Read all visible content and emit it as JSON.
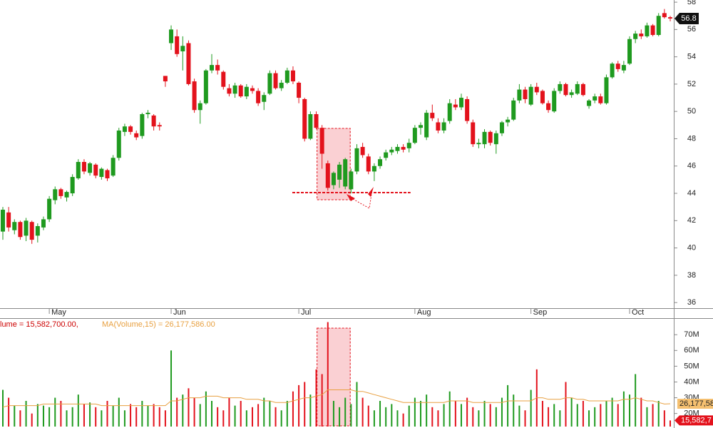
{
  "chart_data": [
    {
      "type": "candlestick",
      "categories": [
        null,
        null,
        null,
        null,
        null,
        null,
        null,
        null,
        "May",
        null,
        null,
        null,
        null,
        null,
        null,
        null,
        null,
        null,
        null,
        null,
        null,
        null,
        null,
        null,
        null,
        null,
        null,
        null,
        null,
        "Jun",
        null,
        null,
        null,
        null,
        null,
        null,
        null,
        null,
        null,
        null,
        null,
        null,
        null,
        null,
        null,
        null,
        null,
        null,
        null,
        null,
        null,
        "Jul",
        null,
        null,
        null,
        null,
        null,
        null,
        null,
        null,
        null,
        null,
        null,
        null,
        null,
        null,
        null,
        null,
        null,
        null,
        null,
        "Aug",
        null,
        null,
        null,
        null,
        null,
        null,
        null,
        null,
        null,
        null,
        null,
        null,
        null,
        null,
        null,
        null,
        null,
        null,
        null,
        "Sep",
        null,
        null,
        null,
        null,
        null,
        null,
        null,
        null,
        null,
        null,
        null,
        null,
        null,
        null,
        null,
        null,
        "Oct",
        null,
        null,
        null,
        null,
        null,
        null,
        null
      ],
      "open": [
        41.2,
        42.6,
        41.3,
        41.9,
        40.9,
        41.9,
        40.9,
        41.5,
        42.1,
        43.5,
        44.3,
        43.7,
        44.0,
        45.1,
        46.3,
        45.5,
        46.1,
        45.2,
        45.7,
        45.3,
        46.6,
        48.5,
        48.9,
        48.4,
        48.2,
        49.8,
        49.7,
        49.0,
        52.6,
        55.0,
        55.5,
        54.4,
        55.0,
        52.2,
        50.1,
        50.6,
        53.0,
        53.4,
        52.9,
        51.7,
        51.3,
        51.9,
        51.1,
        51.7,
        51.5,
        50.7,
        51.3,
        52.8,
        51.7,
        52.1,
        53.0,
        52.1,
        50.9,
        48.0,
        49.8,
        48.8,
        46.2,
        44.6,
        45.0,
        44.5,
        44.3,
        45.6,
        47.4,
        46.7,
        45.6,
        46.0,
        46.6,
        47.0,
        47.1,
        47.4,
        47.3,
        47.7,
        48.8,
        48.1,
        49.9,
        49.2,
        48.6,
        49.3,
        50.5,
        50.3,
        50.9,
        49.2,
        47.6,
        47.6,
        48.5,
        47.6,
        48.4,
        49.2,
        49.4,
        50.8,
        51.6,
        50.5,
        51.8,
        51.5,
        50.6,
        50.0,
        51.5,
        52.0,
        51.2,
        51.3,
        52.0,
        50.4,
        50.8,
        51.1,
        50.6,
        52.5,
        53.5,
        53.0,
        53.5,
        55.3,
        55.7,
        55.5,
        56.3,
        55.6,
        57.2,
        56.9
      ],
      "high": [
        43.0,
        43.0,
        42.1,
        42.0,
        42.2,
        42.0,
        41.8,
        42.3,
        43.8,
        44.5,
        44.4,
        44.2,
        45.4,
        46.5,
        46.5,
        46.3,
        46.2,
        45.9,
        45.8,
        46.8,
        48.8,
        49.1,
        49.0,
        48.6,
        49.9,
        50.1,
        49.8,
        49.2,
        52.6,
        56.3,
        56.0,
        55.5,
        55.2,
        52.4,
        50.8,
        53.1,
        54.2,
        53.8,
        53.0,
        52.0,
        52.1,
        52.0,
        52.0,
        51.9,
        51.7,
        51.4,
        53.0,
        53.0,
        52.3,
        53.2,
        53.3,
        52.2,
        51.0,
        50.0,
        50.0,
        49.0,
        46.4,
        45.6,
        46.3,
        46.6,
        45.8,
        47.6,
        47.7,
        46.9,
        46.2,
        46.7,
        47.2,
        47.4,
        47.6,
        47.6,
        48.0,
        49.0,
        49.2,
        50.1,
        50.5,
        49.5,
        49.5,
        50.9,
        50.9,
        51.3,
        51.1,
        49.4,
        48.0,
        48.7,
        48.6,
        48.6,
        49.3,
        49.6,
        51.0,
        52.0,
        51.8,
        52.0,
        52.1,
        51.6,
        50.8,
        51.7,
        52.2,
        52.1,
        51.6,
        52.2,
        52.1,
        50.9,
        51.3,
        51.3,
        52.7,
        53.6,
        53.7,
        53.7,
        55.5,
        55.9,
        56.0,
        56.5,
        56.4,
        57.2,
        57.5,
        57.0
      ],
      "low": [
        40.6,
        41.2,
        41.0,
        40.6,
        40.5,
        40.3,
        40.4,
        41.3,
        41.9,
        43.2,
        43.6,
        43.4,
        43.8,
        45.0,
        45.4,
        45.3,
        45.1,
        45.0,
        44.9,
        45.2,
        46.4,
        48.2,
        48.3,
        47.9,
        48.0,
        49.5,
        48.6,
        48.6,
        51.8,
        54.5,
        54.0,
        53.0,
        51.9,
        49.9,
        49.1,
        50.5,
        52.8,
        52.7,
        51.6,
        51.1,
        51.0,
        51.0,
        50.9,
        51.3,
        50.4,
        50.1,
        51.2,
        51.6,
        51.5,
        52.0,
        52.0,
        50.6,
        47.8,
        47.9,
        48.7,
        45.8,
        44.2,
        44.3,
        44.4,
        44.3,
        44.0,
        45.4,
        46.6,
        45.4,
        44.9,
        45.8,
        46.4,
        46.8,
        46.9,
        47.0,
        47.0,
        47.6,
        48.3,
        47.9,
        49.3,
        48.4,
        48.4,
        49.1,
        50.1,
        50.1,
        49.1,
        47.4,
        47.3,
        47.3,
        47.5,
        46.9,
        48.2,
        48.9,
        49.3,
        50.6,
        50.6,
        50.4,
        51.2,
        50.5,
        49.9,
        49.9,
        51.3,
        51.1,
        51.0,
        51.2,
        51.1,
        50.2,
        50.6,
        50.5,
        50.5,
        52.4,
        52.9,
        52.8,
        53.4,
        55.0,
        55.3,
        55.4,
        55.5,
        55.5,
        56.8,
        56.6
      ],
      "close": [
        42.8,
        41.5,
        41.9,
        40.8,
        42.0,
        40.6,
        41.6,
        42.1,
        43.6,
        44.3,
        43.8,
        44.1,
        45.2,
        46.3,
        45.6,
        46.2,
        45.3,
        45.8,
        45.1,
        46.6,
        48.6,
        48.9,
        48.5,
        48.1,
        49.8,
        49.9,
        48.9,
        48.9,
        52.2,
        56.0,
        54.2,
        54.8,
        52.0,
        50.1,
        50.6,
        53.0,
        53.4,
        53.0,
        51.8,
        51.3,
        51.9,
        51.1,
        51.8,
        51.5,
        50.6,
        51.2,
        52.8,
        51.7,
        52.1,
        53.0,
        52.2,
        51.0,
        48.0,
        49.8,
        48.8,
        46.9,
        44.4,
        45.5,
        46.1,
        46.5,
        45.6,
        47.3,
        46.8,
        45.6,
        46.0,
        46.5,
        47.0,
        47.2,
        47.4,
        47.2,
        47.7,
        48.8,
        49.0,
        49.9,
        49.5,
        48.6,
        49.2,
        50.6,
        50.3,
        51.0,
        49.3,
        47.6,
        47.7,
        48.5,
        47.7,
        48.4,
        49.2,
        49.4,
        50.8,
        51.6,
        50.9,
        51.8,
        51.4,
        50.6,
        50.1,
        51.5,
        52.0,
        51.2,
        51.4,
        52.0,
        51.2,
        50.8,
        51.1,
        50.6,
        52.5,
        53.5,
        53.1,
        53.4,
        55.3,
        55.7,
        55.5,
        56.3,
        55.6,
        57.0,
        56.9,
        56.8
      ],
      "up_color": "#1f9a1f",
      "down_color": "#e3121c",
      "ylim": [
        35.59,
        58.16
      ],
      "yticks": [
        36,
        38,
        40,
        42,
        44,
        46,
        48,
        50,
        52,
        54,
        56,
        58
      ]
    },
    {
      "type": "bar",
      "annotations": [
        "lume = 15,582,700.00,",
        "MA(Volume,15) = 26,177,586.00"
      ],
      "series": [
        {
          "values": [
            35,
            30,
            25,
            22,
            28,
            20,
            26,
            25,
            24,
            30,
            28,
            22,
            24,
            32,
            26,
            27,
            24,
            22,
            28,
            25,
            30,
            22,
            26,
            24,
            28,
            25,
            26,
            24,
            22,
            60,
            30,
            32,
            36,
            30,
            26,
            34,
            28,
            24,
            22,
            30,
            25,
            28,
            22,
            24,
            26,
            30,
            28,
            24,
            22,
            28,
            34,
            38,
            40,
            32,
            48,
            45,
            78,
            28,
            24,
            30,
            26,
            40,
            30,
            25,
            22,
            28,
            24,
            26,
            22,
            20,
            25,
            30,
            28,
            32,
            24,
            22,
            26,
            34,
            28,
            26,
            30,
            24,
            22,
            28,
            26,
            24,
            30,
            38,
            32,
            25,
            22,
            35,
            48,
            28,
            24,
            26,
            22,
            40,
            30,
            26,
            28,
            22,
            24,
            26,
            28,
            30,
            26,
            34,
            32,
            45,
            30,
            24,
            26,
            28,
            22,
            15.5827
          ],
          "last_label": "15,582,7",
          "color": "#e3121c"
        },
        {
          "type": "line",
          "color": "#e8a040",
          "values": [
            24,
            25,
            25,
            25,
            25,
            25,
            25,
            26,
            26,
            26,
            26,
            26,
            26,
            26,
            26,
            26,
            26,
            25,
            25,
            25,
            25,
            25,
            25,
            25,
            25,
            25,
            25,
            25,
            25,
            28,
            28,
            29,
            30,
            30,
            30,
            31,
            31,
            31,
            30,
            30,
            30,
            30,
            29,
            29,
            29,
            28,
            28,
            27,
            27,
            27,
            28,
            29,
            30,
            30,
            31,
            32,
            35,
            35,
            35,
            35,
            35,
            34,
            34,
            33,
            32,
            31,
            30,
            29,
            28,
            27,
            27,
            27,
            27,
            27,
            27,
            27,
            27,
            28,
            28,
            28,
            28,
            27,
            27,
            27,
            27,
            27,
            27,
            28,
            28,
            28,
            28,
            28,
            30,
            30,
            29,
            29,
            29,
            30,
            30,
            29,
            29,
            28,
            28,
            28,
            28,
            28,
            28,
            29,
            29,
            30,
            29,
            28,
            28,
            27,
            26,
            26.177586
          ],
          "last_label": "26,177,58"
        }
      ],
      "ylim": [
        11.7,
        79.6
      ],
      "yticks": [
        {
          "value": 20,
          "label": "20M"
        },
        {
          "value": 30,
          "label": "30M"
        },
        {
          "value": 40,
          "label": "40M"
        },
        {
          "value": 50,
          "label": "50M"
        },
        {
          "value": 60,
          "label": "60M"
        },
        {
          "value": 70,
          "label": "70M"
        }
      ]
    }
  ]
}
